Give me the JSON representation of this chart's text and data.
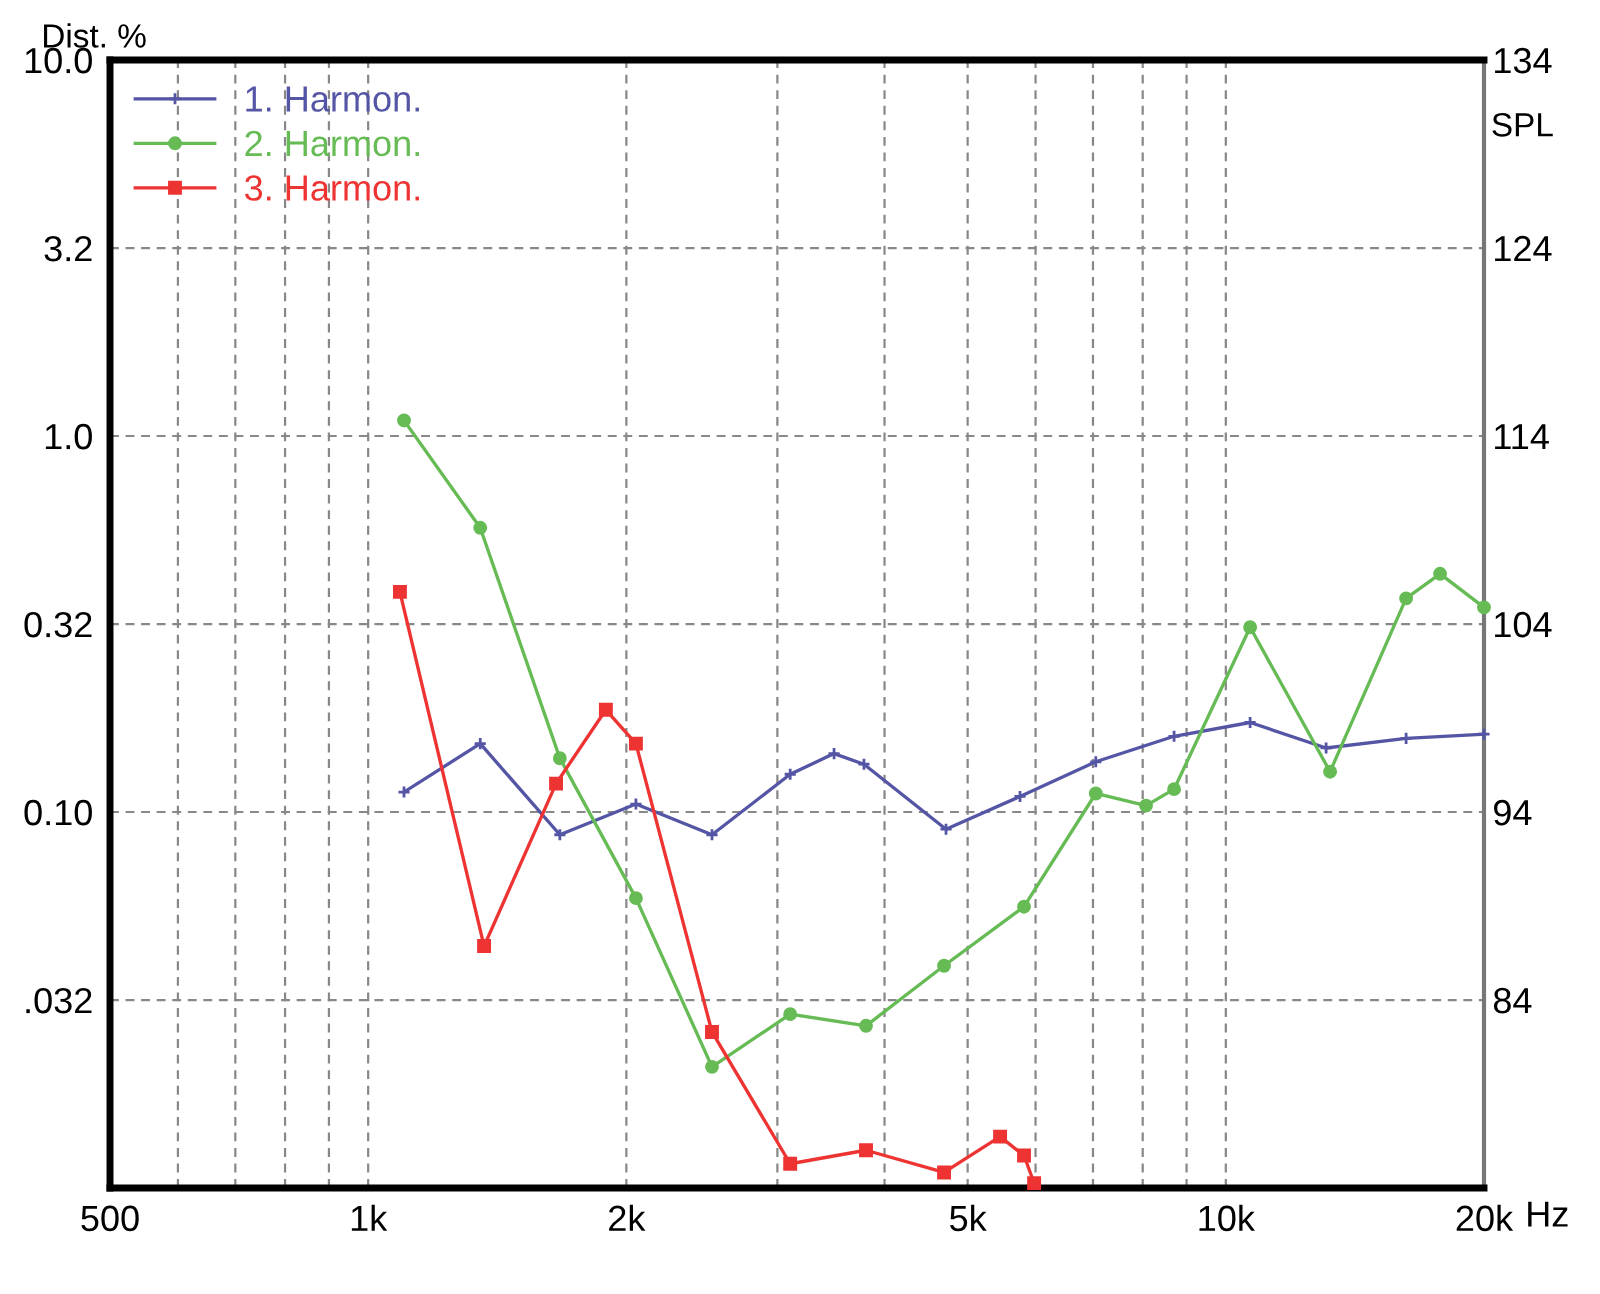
{
  "chart_data": {
    "type": "line",
    "ylabel": "Dist. %",
    "y2label": "SPL",
    "log": "xy",
    "grid": true,
    "legend": "top left",
    "line_style": "solid",
    "xlim": [
      500,
      20000
    ],
    "xticks": [
      500,
      {
        "value": 600,
        "label": null
      },
      {
        "value": 700,
        "label": null
      },
      {
        "value": 800,
        "label": null
      },
      {
        "value": 900,
        "label": null
      },
      {
        "value": 1000,
        "label": "1k"
      },
      {
        "value": 2000,
        "label": "2k"
      },
      {
        "value": 3000,
        "label": null
      },
      {
        "value": 4000,
        "label": null
      },
      {
        "value": 5000,
        "label": "5k"
      },
      {
        "value": 6000,
        "label": null
      },
      {
        "value": 7000,
        "label": null
      },
      {
        "value": 8000,
        "label": null
      },
      {
        "value": 9000,
        "label": null
      },
      {
        "value": 10000,
        "label": "10k"
      },
      {
        "value": 20000,
        "label": "20k"
      }
    ],
    "xlabel": "Hz",
    "ylim": [
      0.01,
      10
    ],
    "yticks": [
      {
        "value": 10,
        "label": "10.0"
      },
      {
        "value": 3.162,
        "label": "3.2"
      },
      {
        "value": 1,
        "label": "1.0"
      },
      {
        "value": 0.3162,
        "label": "0.32"
      },
      {
        "value": 0.1,
        "label": "0.10"
      },
      {
        "value": 0.03162,
        "label": ".032"
      }
    ],
    "y2lim": [
      74,
      134
    ],
    "y2ticks": [
      84,
      94,
      104,
      114,
      124,
      134
    ],
    "series": [
      {
        "name": "1. Harmon.",
        "color": "#5555a5",
        "marker": "cross",
        "x": [
          1101,
          1351,
          1673,
          2052,
          2517,
          3105,
          3493,
          3785,
          4718,
          5755,
          7053,
          8703,
          10674,
          13090,
          16226,
          20000
        ],
        "values": [
          0.113,
          0.152,
          0.087,
          0.105,
          0.087,
          0.126,
          0.143,
          0.134,
          0.09,
          0.11,
          0.136,
          0.159,
          0.173,
          0.148,
          0.157,
          0.161
        ]
      },
      {
        "name": "2. Harmon.",
        "color": "#66bb55",
        "marker": "circle",
        "x": [
          1101,
          1351,
          1673,
          2052,
          2517,
          3105,
          3806,
          4693,
          5817,
          7053,
          8072,
          8703,
          10674,
          13230,
          16226,
          17775,
          20000
        ],
        "values": [
          1.1,
          0.57,
          0.139,
          0.059,
          0.021,
          0.029,
          0.027,
          0.039,
          0.056,
          0.112,
          0.104,
          0.115,
          0.31,
          0.128,
          0.37,
          0.43,
          0.35
        ]
      },
      {
        "name": "3. Harmon.",
        "color": "#ee3333",
        "marker": "square",
        "x": [
          1089,
          1365,
          1656,
          1893,
          2052,
          2517,
          3105,
          3806,
          4693,
          5455,
          5817,
          5977
        ],
        "values": [
          0.385,
          0.044,
          0.119,
          0.187,
          0.152,
          0.026,
          0.0116,
          0.0126,
          0.011,
          0.0137,
          0.0122,
          0.0103
        ]
      }
    ]
  }
}
